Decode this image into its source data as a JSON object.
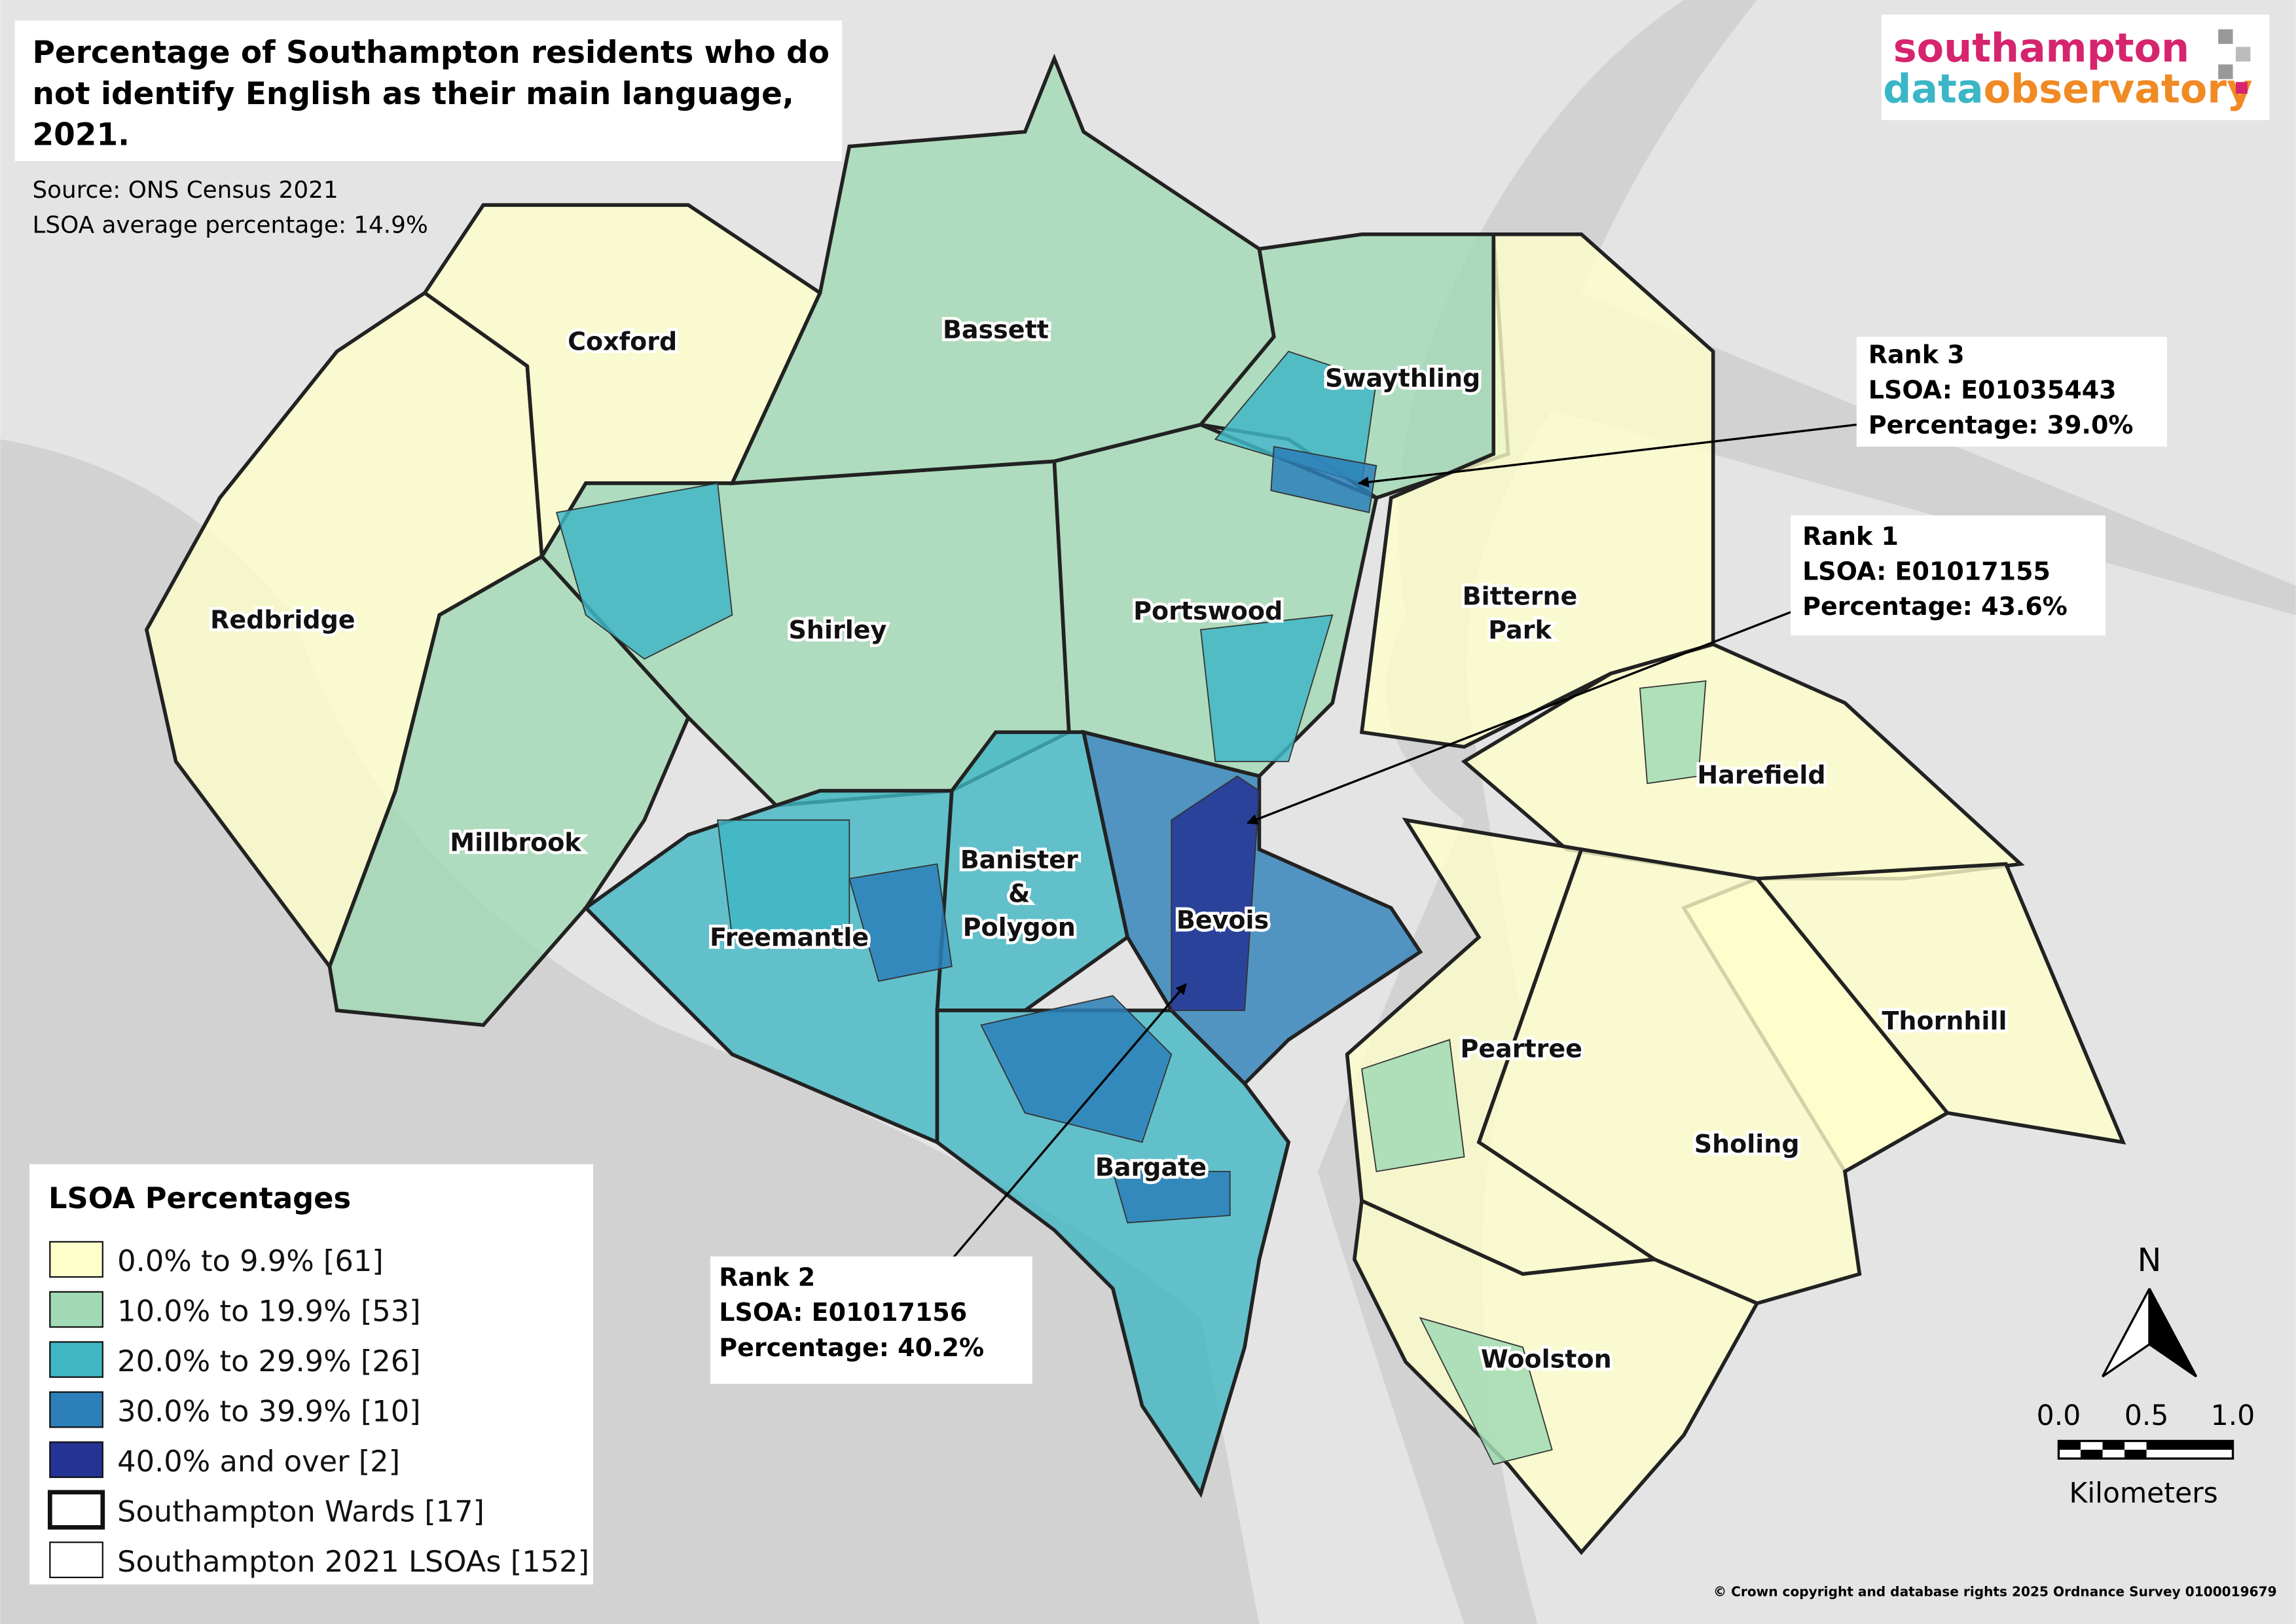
{
  "title": [
    "Percentage of Southampton residents who do",
    "not identify English as their main language,",
    "2021."
  ],
  "source": [
    "Source: ONS Census 2021",
    "LSOA average percentage: 14.9%"
  ],
  "logo": {
    "line1": "southampton",
    "data": "data",
    "observatory": "observatory"
  },
  "wards": [
    {
      "label": [
        "Coxford"
      ]
    },
    {
      "label": [
        "Bassett"
      ]
    },
    {
      "label": [
        "Swaythling"
      ]
    },
    {
      "label": [
        "Redbridge"
      ]
    },
    {
      "label": [
        "Shirley"
      ]
    },
    {
      "label": [
        "Portswood"
      ]
    },
    {
      "label": [
        "Bitterne",
        "Park"
      ]
    },
    {
      "label": [
        "Harefield"
      ]
    },
    {
      "label": [
        "Millbrook"
      ]
    },
    {
      "label": [
        "Banister",
        "&",
        "Polygon"
      ]
    },
    {
      "label": [
        "Freemantle"
      ]
    },
    {
      "label": [
        "Bevois"
      ]
    },
    {
      "label": [
        "Thornhill"
      ]
    },
    {
      "label": [
        "Peartree"
      ]
    },
    {
      "label": [
        "Sholing"
      ]
    },
    {
      "label": [
        "Bargate"
      ]
    },
    {
      "label": [
        "Woolston"
      ]
    }
  ],
  "callouts": [
    {
      "lines": [
        "Rank 3",
        "LSOA: E01035443",
        "Percentage: 39.0%"
      ]
    },
    {
      "lines": [
        "Rank 1",
        "LSOA: E01017155",
        "Percentage: 43.6%"
      ]
    },
    {
      "lines": [
        "Rank 2",
        "LSOA: E01017156",
        "Percentage: 40.2%"
      ]
    }
  ],
  "legend": {
    "title": "LSOA Percentages",
    "items": [
      {
        "label": "0.0% to 9.9% [61]",
        "color": "#ffffcc"
      },
      {
        "label": "10.0% to 19.9% [53]",
        "color": "#a1dab4"
      },
      {
        "label": "20.0% to 29.9% [26]",
        "color": "#41b6c4"
      },
      {
        "label": "30.0% to 39.9% [10]",
        "color": "#2c7fb8"
      },
      {
        "label": "40.0% and over [2]",
        "color": "#253494"
      },
      {
        "label": "Southampton Wards [17]"
      },
      {
        "label": "Southampton 2021 LSOAs [152]"
      }
    ]
  },
  "north": "N",
  "scale": {
    "ticks": [
      "0.0",
      "0.5",
      "1.0"
    ],
    "unit": "Kilometers"
  },
  "copyright": "© Crown copyright and database rights 2025 Ordnance Survey 0100019679"
}
